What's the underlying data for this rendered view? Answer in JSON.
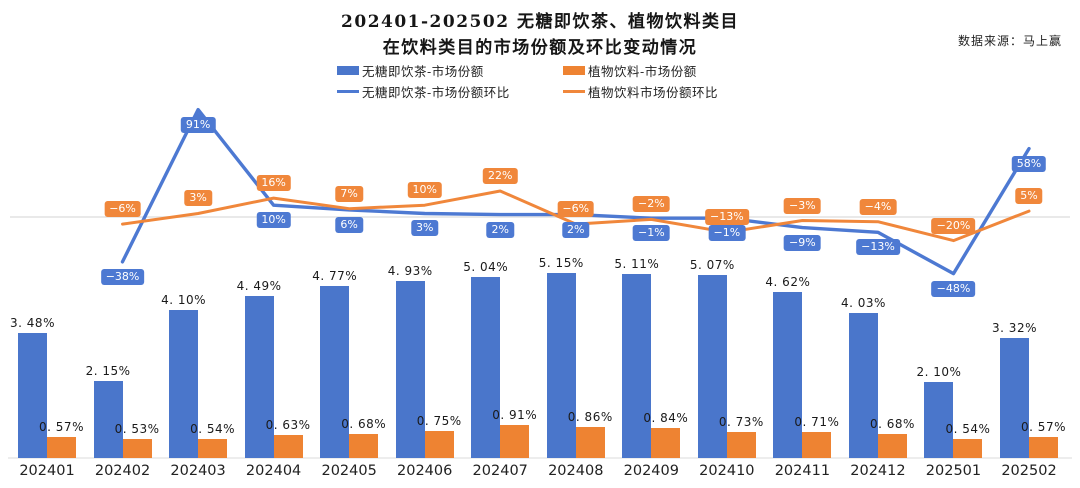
{
  "header": {
    "title_line1": "202401-202502 无糖即饮茶、植物饮料类目",
    "title_line2": "在饮料类目的市场份额及环比变动情况",
    "source": "数据来源：马上赢"
  },
  "chart_data": {
    "type": "combo",
    "title": "202401-202502 无糖即饮茶、植物饮料类目在饮料类目的市场份额及环比变动情况",
    "categories": [
      "202401",
      "202402",
      "202403",
      "202404",
      "202405",
      "202406",
      "202407",
      "202408",
      "202409",
      "202410",
      "202411",
      "202412",
      "202501",
      "202502"
    ],
    "bar_series": [
      {
        "name": "无糖即饮茶-市场份额",
        "kind": "bar",
        "color": "#4A76CB",
        "unit": "%",
        "values": [
          3.48,
          2.15,
          4.1,
          4.49,
          4.77,
          4.93,
          5.04,
          5.15,
          5.11,
          5.07,
          4.62,
          4.03,
          2.1,
          3.32
        ]
      },
      {
        "name": "植物饮料-市场份额",
        "kind": "bar",
        "color": "#EE8332",
        "unit": "%",
        "values": [
          0.57,
          0.53,
          0.54,
          0.63,
          0.68,
          0.75,
          0.91,
          0.86,
          0.84,
          0.73,
          0.71,
          0.68,
          0.54,
          0.57
        ]
      }
    ],
    "line_series": [
      {
        "name": "无糖即饮茶-市场份额环比",
        "kind": "line",
        "color": "#4D79D2",
        "unit": "%",
        "start_index": 1,
        "label_position": "below",
        "peak_callout_index": 1,
        "values": [
          -38,
          91,
          10,
          6,
          3,
          2,
          2,
          -1,
          -1,
          -9,
          -13,
          -48,
          58
        ]
      },
      {
        "name": "植物饮料市场份额环比",
        "kind": "line",
        "color": "#F0873B",
        "unit": "%",
        "start_index": 1,
        "label_position": "above",
        "values": [
          -6,
          3,
          16,
          7,
          10,
          22,
          -6,
          -2,
          -13,
          -3,
          -4,
          -20,
          5
        ]
      }
    ],
    "bar_axis": {
      "range_pct": [
        0,
        5.5
      ],
      "gridlines": false
    },
    "line_axis": {
      "zero_gridline": true
    },
    "legend_position": "top",
    "grid": "off"
  }
}
